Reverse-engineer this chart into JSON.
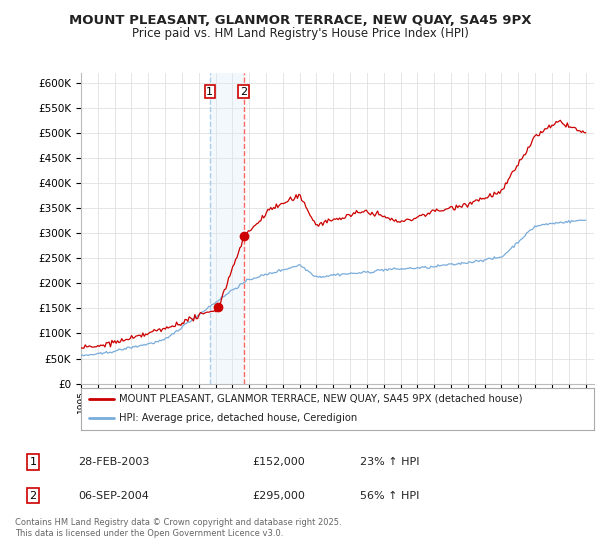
{
  "title": "MOUNT PLEASANT, GLANMOR TERRACE, NEW QUAY, SA45 9PX",
  "subtitle": "Price paid vs. HM Land Registry's House Price Index (HPI)",
  "legend_line1": "MOUNT PLEASANT, GLANMOR TERRACE, NEW QUAY, SA45 9PX (detached house)",
  "legend_line2": "HPI: Average price, detached house, Ceredigion",
  "transaction1_date": "28-FEB-2003",
  "transaction1_price": "£152,000",
  "transaction1_hpi": "23% ↑ HPI",
  "transaction2_date": "06-SEP-2004",
  "transaction2_price": "£295,000",
  "transaction2_hpi": "56% ↑ HPI",
  "footer": "Contains HM Land Registry data © Crown copyright and database right 2025.\nThis data is licensed under the Open Government Licence v3.0.",
  "line_color_red": "#cc0000",
  "line_color_blue": "#7aaddb",
  "background_color": "#ffffff",
  "grid_color": "#e0e0e0",
  "vline_color_red": "#ff6666",
  "highlight_color": "#d8eaf7",
  "t1_x": 2003.15,
  "t2_x": 2004.67,
  "t1_price": 152000,
  "t2_price": 295000,
  "xlim_left": 1995,
  "xlim_right": 2025.5,
  "ylim_top": 620000,
  "ytick_step": 50000
}
